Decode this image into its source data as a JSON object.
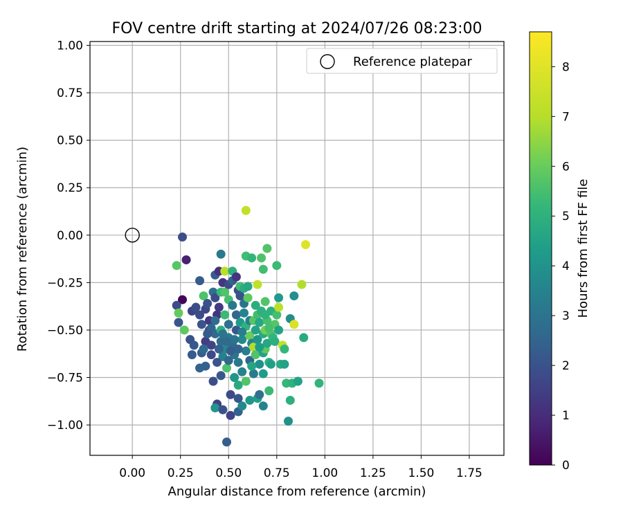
{
  "chart_data": {
    "type": "scatter",
    "title": "FOV centre drift starting at 2024/07/26 08:23:00",
    "xlabel": "Angular distance from reference (arcmin)",
    "ylabel": "Rotation from reference (arcmin)",
    "xlim": [
      -0.22,
      1.93
    ],
    "ylim": [
      -1.16,
      1.02
    ],
    "xticks": [
      "0.00",
      "0.25",
      "0.50",
      "0.75",
      "1.00",
      "1.25",
      "1.50",
      "1.75"
    ],
    "xtick_values": [
      0,
      0.25,
      0.5,
      0.75,
      1.0,
      1.25,
      1.5,
      1.75
    ],
    "yticks": [
      "−1.00",
      "−0.75",
      "−0.50",
      "−0.25",
      "0.00",
      "0.25",
      "0.50",
      "0.75",
      "1.00"
    ],
    "ytick_values": [
      -1.0,
      -0.75,
      -0.5,
      -0.25,
      0,
      0.25,
      0.5,
      0.75,
      1.0
    ],
    "grid": true,
    "legend": {
      "position": "top-right",
      "entries": [
        "Reference platepar"
      ]
    },
    "reference_point": {
      "x": 0,
      "y": 0,
      "label": "Reference platepar"
    },
    "colorbar": {
      "label": "Hours from first FF file",
      "colormap": "viridis",
      "range": [
        0,
        8.7
      ],
      "ticks": [
        "0",
        "1",
        "2",
        "3",
        "4",
        "5",
        "6",
        "7",
        "8"
      ],
      "tick_values": [
        0,
        1,
        2,
        3,
        4,
        5,
        6,
        7,
        8
      ]
    },
    "points": [
      [
        0.26,
        -0.34,
        0.1
      ],
      [
        0.28,
        -0.13,
        0.8
      ],
      [
        0.26,
        -0.01,
        2.1
      ],
      [
        0.23,
        -0.37,
        2.0
      ],
      [
        0.24,
        -0.46,
        2.3
      ],
      [
        0.23,
        -0.16,
        6.4
      ],
      [
        0.24,
        -0.41,
        6.6
      ],
      [
        0.27,
        -0.5,
        6.5
      ],
      [
        0.3,
        -0.55,
        2.2
      ],
      [
        0.32,
        -0.58,
        2.4
      ],
      [
        0.31,
        -0.63,
        2.5
      ],
      [
        0.31,
        -0.4,
        1.8
      ],
      [
        0.33,
        -0.38,
        2.1
      ],
      [
        0.35,
        -0.24,
        2.5
      ],
      [
        0.35,
        -0.42,
        2.0
      ],
      [
        0.36,
        -0.47,
        2.3
      ],
      [
        0.36,
        -0.62,
        2.6
      ],
      [
        0.35,
        -0.7,
        2.8
      ],
      [
        0.37,
        -0.32,
        6.2
      ],
      [
        0.38,
        -0.39,
        1.9
      ],
      [
        0.38,
        -0.56,
        1.6
      ],
      [
        0.38,
        -0.69,
        2.7
      ],
      [
        0.39,
        -0.36,
        2.2
      ],
      [
        0.4,
        -0.45,
        1.5
      ],
      [
        0.4,
        -0.5,
        1.7
      ],
      [
        0.41,
        -0.58,
        1.8
      ],
      [
        0.41,
        -0.63,
        2.0
      ],
      [
        0.42,
        -0.3,
        3.2
      ],
      [
        0.42,
        -0.77,
        2.1
      ],
      [
        0.43,
        -0.21,
        2.5
      ],
      [
        0.43,
        -0.33,
        2.0
      ],
      [
        0.43,
        -0.52,
        3.0
      ],
      [
        0.44,
        -0.42,
        1.3
      ],
      [
        0.44,
        -0.89,
        1.7
      ],
      [
        0.43,
        -0.91,
        4.5
      ],
      [
        0.45,
        -0.19,
        1.2
      ],
      [
        0.45,
        -0.38,
        1.5
      ],
      [
        0.46,
        -0.1,
        3.5
      ],
      [
        0.46,
        -0.3,
        5.8
      ],
      [
        0.46,
        -0.5,
        5.5
      ],
      [
        0.46,
        -0.56,
        3.1
      ],
      [
        0.47,
        -0.64,
        3.8
      ],
      [
        0.46,
        -0.74,
        2.4
      ],
      [
        0.47,
        -0.92,
        2.2
      ],
      [
        0.47,
        -0.25,
        1.4
      ],
      [
        0.48,
        -0.19,
        7.8
      ],
      [
        0.48,
        -0.3,
        6.3
      ],
      [
        0.48,
        -0.42,
        5.9
      ],
      [
        0.48,
        -0.6,
        4.1
      ],
      [
        0.49,
        -0.7,
        6.2
      ],
      [
        0.49,
        -1.09,
        2.6
      ],
      [
        0.5,
        -0.26,
        2.0
      ],
      [
        0.5,
        -0.34,
        6.1
      ],
      [
        0.5,
        -0.47,
        3.2
      ],
      [
        0.5,
        -0.54,
        3.6
      ],
      [
        0.5,
        -0.66,
        2.9
      ],
      [
        0.51,
        -0.84,
        2.0
      ],
      [
        0.51,
        -0.95,
        1.8
      ],
      [
        0.52,
        -0.19,
        5.5
      ],
      [
        0.52,
        -0.24,
        2.7
      ],
      [
        0.52,
        -0.37,
        3.5
      ],
      [
        0.52,
        -0.58,
        3.0
      ],
      [
        0.53,
        -0.63,
        3.4
      ],
      [
        0.53,
        -0.75,
        4.6
      ],
      [
        0.54,
        -0.22,
        1.3
      ],
      [
        0.54,
        -0.42,
        2.9
      ],
      [
        0.54,
        -0.5,
        2.4
      ],
      [
        0.55,
        -0.29,
        2.1
      ],
      [
        0.55,
        -0.67,
        3.5
      ],
      [
        0.55,
        -0.79,
        5.3
      ],
      [
        0.55,
        -0.86,
        2.3
      ],
      [
        0.55,
        -0.93,
        2.7
      ],
      [
        0.56,
        -0.27,
        6.0
      ],
      [
        0.56,
        -0.32,
        2.2
      ],
      [
        0.56,
        -0.46,
        4.7
      ],
      [
        0.57,
        -0.55,
        4.1
      ],
      [
        0.57,
        -0.72,
        3.9
      ],
      [
        0.57,
        -0.9,
        4.1
      ],
      [
        0.58,
        -0.28,
        5.4
      ],
      [
        0.58,
        -0.36,
        3.3
      ],
      [
        0.58,
        -0.41,
        3.9
      ],
      [
        0.59,
        0.13,
        7.9
      ],
      [
        0.59,
        -0.11,
        6.0
      ],
      [
        0.59,
        -0.48,
        5.6
      ],
      [
        0.59,
        -0.61,
        3.7
      ],
      [
        0.59,
        -0.77,
        6.3
      ],
      [
        0.6,
        -0.27,
        5.2
      ],
      [
        0.6,
        -0.33,
        6.5
      ],
      [
        0.61,
        -0.45,
        3.6
      ],
      [
        0.61,
        -0.53,
        6.7
      ],
      [
        0.61,
        -0.66,
        2.8
      ],
      [
        0.61,
        -0.87,
        4.6
      ],
      [
        0.62,
        -0.12,
        5.7
      ],
      [
        0.62,
        -0.57,
        3.9
      ],
      [
        0.63,
        -0.45,
        6.4
      ],
      [
        0.63,
        -0.59,
        7.7
      ],
      [
        0.63,
        -0.73,
        3.6
      ],
      [
        0.64,
        -0.37,
        5.4
      ],
      [
        0.64,
        -0.5,
        5.0
      ],
      [
        0.64,
        -0.63,
        6.3
      ],
      [
        0.65,
        -0.26,
        7.9
      ],
      [
        0.65,
        -0.42,
        6.0
      ],
      [
        0.65,
        -0.55,
        4.5
      ],
      [
        0.65,
        -0.86,
        4.9
      ],
      [
        0.66,
        -0.46,
        5.2
      ],
      [
        0.66,
        -0.68,
        4.4
      ],
      [
        0.66,
        -0.84,
        3.2
      ],
      [
        0.67,
        -0.12,
        6.2
      ],
      [
        0.67,
        -0.4,
        5.5
      ],
      [
        0.68,
        -0.18,
        6.0
      ],
      [
        0.68,
        -0.52,
        5.3
      ],
      [
        0.68,
        -0.62,
        5.0
      ],
      [
        0.68,
        -0.73,
        4.7
      ],
      [
        0.68,
        -0.9,
        3.9
      ],
      [
        0.69,
        -0.35,
        6.3
      ],
      [
        0.69,
        -0.5,
        6.8
      ],
      [
        0.69,
        -0.6,
        6.5
      ],
      [
        0.7,
        -0.07,
        6.3
      ],
      [
        0.7,
        -0.45,
        6.1
      ],
      [
        0.7,
        -0.57,
        5.2
      ],
      [
        0.71,
        -0.67,
        5.6
      ],
      [
        0.71,
        -0.82,
        5.9
      ],
      [
        0.72,
        -0.4,
        5.5
      ],
      [
        0.72,
        -0.52,
        6.3
      ],
      [
        0.72,
        -0.68,
        4.9
      ],
      [
        0.73,
        -0.54,
        5.7
      ],
      [
        0.74,
        -0.47,
        6.4
      ],
      [
        0.74,
        -0.56,
        5.5
      ],
      [
        0.75,
        -0.16,
        5.9
      ],
      [
        0.75,
        -0.42,
        6.1
      ],
      [
        0.76,
        -0.33,
        4.7
      ],
      [
        0.76,
        -0.5,
        5.0
      ],
      [
        0.76,
        -0.38,
        7.8
      ],
      [
        0.77,
        -0.68,
        5.3
      ],
      [
        0.78,
        -0.58,
        7.9
      ],
      [
        0.79,
        -0.6,
        5.8
      ],
      [
        0.79,
        -0.68,
        5.0
      ],
      [
        0.8,
        -0.78,
        5.8
      ],
      [
        0.81,
        -0.98,
        4.4
      ],
      [
        0.82,
        -0.87,
        5.5
      ],
      [
        0.82,
        -0.44,
        4.2
      ],
      [
        0.83,
        -0.78,
        5.6
      ],
      [
        0.84,
        -0.47,
        8.2
      ],
      [
        0.84,
        -0.32,
        4.3
      ],
      [
        0.86,
        -0.77,
        5.0
      ],
      [
        0.88,
        -0.26,
        7.7
      ],
      [
        0.89,
        -0.54,
        5.3
      ],
      [
        0.9,
        -0.05,
        8.3
      ],
      [
        0.97,
        -0.78,
        5.7
      ],
      [
        0.53,
        -0.55,
        3.3
      ],
      [
        0.55,
        -0.6,
        2.8
      ],
      [
        0.57,
        -0.51,
        3.7
      ],
      [
        0.49,
        -0.56,
        3.0
      ],
      [
        0.51,
        -0.61,
        2.6
      ],
      [
        0.62,
        -0.69,
        5.1
      ],
      [
        0.66,
        -0.59,
        4.8
      ],
      [
        0.69,
        -0.42,
        5.6
      ],
      [
        0.71,
        -0.49,
        6.1
      ],
      [
        0.45,
        -0.6,
        2.7
      ],
      [
        0.43,
        -0.45,
        3.1
      ],
      [
        0.41,
        -0.49,
        2.8
      ],
      [
        0.39,
        -0.52,
        2.5
      ],
      [
        0.37,
        -0.6,
        3.0
      ],
      [
        0.44,
        -0.67,
        2.3
      ],
      [
        0.47,
        -0.52,
        3.4
      ]
    ]
  }
}
